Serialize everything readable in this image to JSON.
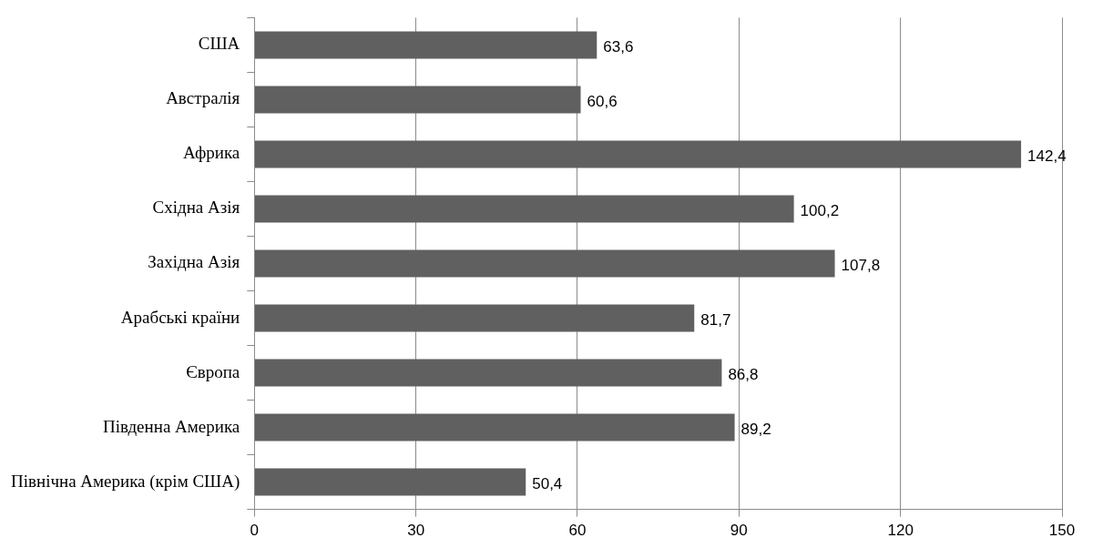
{
  "chart_data": {
    "type": "bar",
    "orientation": "horizontal",
    "categories": [
      "США",
      "Австралія",
      "Африка",
      "Східна Азія",
      "Західна Азія",
      "Арабські країни",
      "Європа",
      "Південна Америка",
      "Північна Америка (крім США)"
    ],
    "values": [
      63.6,
      60.6,
      142.4,
      100.2,
      107.8,
      81.7,
      86.8,
      89.2,
      50.4
    ],
    "value_labels": [
      "63,6",
      "60,6",
      "142,4",
      "100,2",
      "107,8",
      "81,7",
      "86,8",
      "89,2",
      "50,4"
    ],
    "color": "#606060",
    "xlim": [
      0,
      150
    ],
    "xticks": [
      0,
      30,
      60,
      90,
      120,
      150
    ],
    "grid": "x",
    "legend": false
  }
}
